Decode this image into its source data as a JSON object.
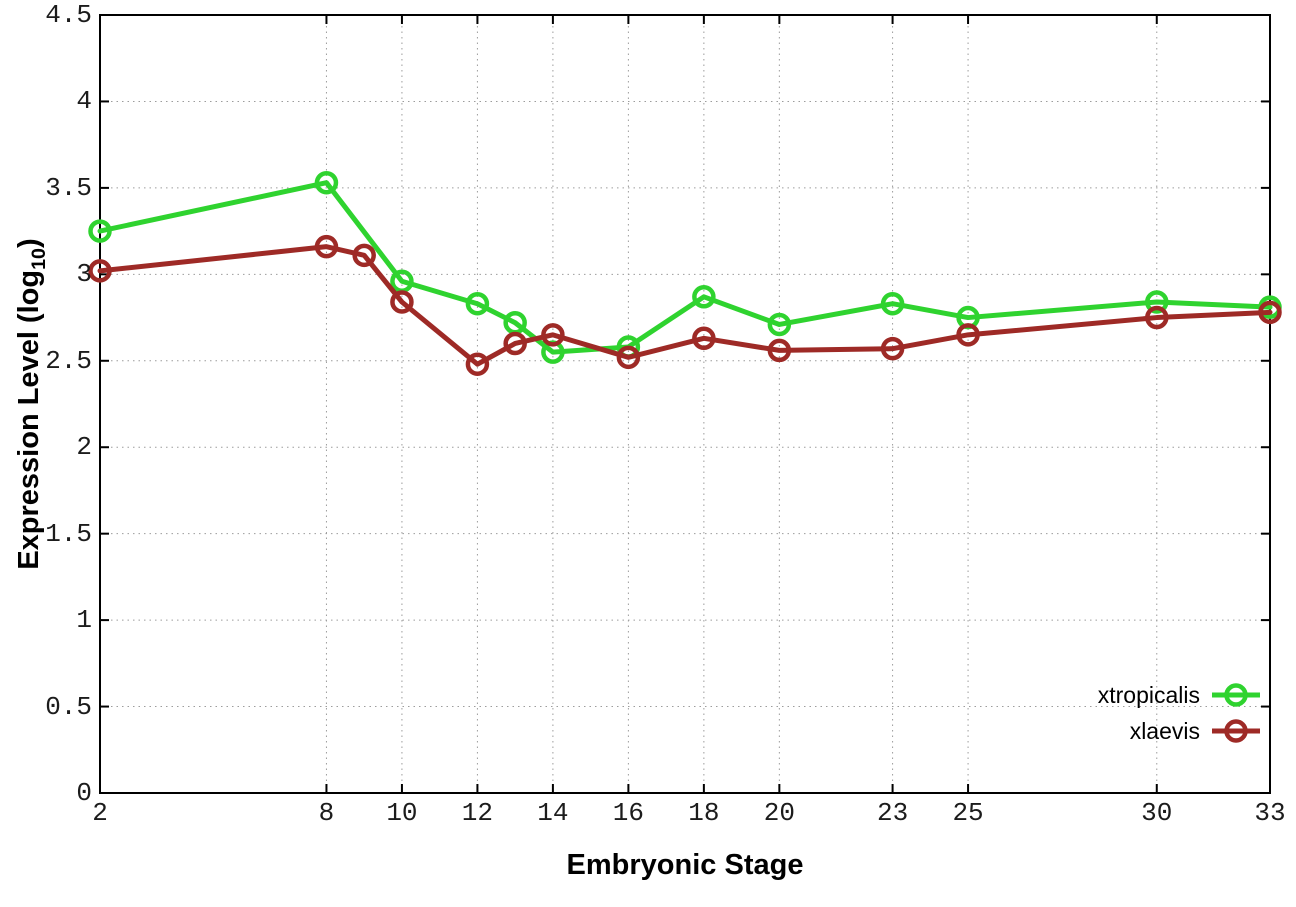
{
  "figure": {
    "xlabel": "Embryonic Stage",
    "ylabel_pre": "Expression Level (log",
    "ylabel_sub": "10",
    "ylabel_post": ")"
  },
  "style": {
    "background": "#ffffff",
    "axis_color": "#000000",
    "grid_color": "#9c9c9c",
    "tick_label_color": "#1c1c1c"
  },
  "chart_data": {
    "type": "line",
    "title": "",
    "xlabel": "Embryonic Stage",
    "ylabel": "Expression Level (log10)",
    "xlim": [
      2,
      33
    ],
    "ylim": [
      0,
      4.5
    ],
    "x_ticks": [
      2,
      8,
      10,
      12,
      14,
      16,
      18,
      20,
      23,
      25,
      30,
      33
    ],
    "y_ticks": [
      0,
      0.5,
      1,
      1.5,
      2,
      2.5,
      3,
      3.5,
      4,
      4.5
    ],
    "grid": true,
    "legend_position": "bottom-right",
    "marker": "open-circle",
    "series": [
      {
        "name": "xtropicalis",
        "color": "#2fd32f",
        "points": [
          [
            2,
            3.25
          ],
          [
            8,
            3.53
          ],
          [
            10,
            2.96
          ],
          [
            12,
            2.83
          ],
          [
            13,
            2.72
          ],
          [
            14,
            2.55
          ],
          [
            16,
            2.58
          ],
          [
            18,
            2.87
          ],
          [
            20,
            2.71
          ],
          [
            23,
            2.83
          ],
          [
            25,
            2.75
          ],
          [
            30,
            2.84
          ],
          [
            33,
            2.81
          ]
        ]
      },
      {
        "name": "xlaevis",
        "color": "#9e2a26",
        "points": [
          [
            2,
            3.02
          ],
          [
            8,
            3.16
          ],
          [
            9,
            3.11
          ],
          [
            10,
            2.84
          ],
          [
            12,
            2.48
          ],
          [
            13,
            2.6
          ],
          [
            14,
            2.65
          ],
          [
            16,
            2.52
          ],
          [
            18,
            2.63
          ],
          [
            20,
            2.56
          ],
          [
            23,
            2.57
          ],
          [
            25,
            2.65
          ],
          [
            30,
            2.75
          ],
          [
            33,
            2.78
          ]
        ]
      }
    ]
  }
}
